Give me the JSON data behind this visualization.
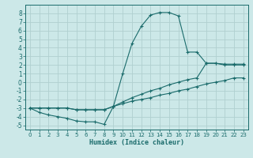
{
  "xlabel": "Humidex (Indice chaleur)",
  "bg_color": "#cce8e8",
  "grid_color": "#b0d0d0",
  "line_color": "#1a6b6b",
  "xlim": [
    -0.5,
    23.5
  ],
  "ylim": [
    -5.5,
    9.0
  ],
  "xticks": [
    0,
    1,
    2,
    3,
    4,
    5,
    6,
    7,
    8,
    9,
    10,
    11,
    12,
    13,
    14,
    15,
    16,
    17,
    18,
    19,
    20,
    21,
    22,
    23
  ],
  "yticks": [
    -5,
    -4,
    -3,
    -2,
    -1,
    0,
    1,
    2,
    3,
    4,
    5,
    6,
    7,
    8
  ],
  "line1_x": [
    0,
    1,
    2,
    3,
    4,
    5,
    6,
    7,
    8,
    9,
    10,
    11,
    12,
    13,
    14,
    15,
    16,
    17,
    18,
    19,
    20,
    21,
    22,
    23
  ],
  "line1_y": [
    -3,
    -3.5,
    -3.8,
    -4.0,
    -4.2,
    -4.5,
    -4.6,
    -4.6,
    -4.9,
    -2.8,
    1.0,
    4.5,
    6.5,
    7.8,
    8.1,
    8.1,
    7.7,
    3.5,
    3.5,
    2.2,
    2.2,
    2.1,
    2.1,
    2.1
  ],
  "line2_x": [
    0,
    1,
    2,
    3,
    4,
    5,
    6,
    7,
    8,
    9,
    10,
    11,
    12,
    13,
    14,
    15,
    16,
    17,
    18,
    19,
    20,
    21,
    22,
    23
  ],
  "line2_y": [
    -3,
    -3.0,
    -3.0,
    -3.0,
    -3.0,
    -3.2,
    -3.2,
    -3.2,
    -3.2,
    -2.8,
    -2.3,
    -1.8,
    -1.4,
    -1.0,
    -0.7,
    -0.3,
    0.0,
    0.3,
    0.5,
    2.2,
    2.2,
    2.0,
    2.0,
    2.0
  ],
  "line3_x": [
    0,
    1,
    2,
    3,
    4,
    5,
    6,
    7,
    8,
    9,
    10,
    11,
    12,
    13,
    14,
    15,
    16,
    17,
    18,
    19,
    20,
    21,
    22,
    23
  ],
  "line3_y": [
    -3,
    -3.0,
    -3.0,
    -3.0,
    -3.0,
    -3.2,
    -3.2,
    -3.2,
    -3.2,
    -2.8,
    -2.5,
    -2.2,
    -2.0,
    -1.8,
    -1.5,
    -1.3,
    -1.0,
    -0.8,
    -0.5,
    -0.2,
    0.0,
    0.2,
    0.5,
    0.5
  ]
}
